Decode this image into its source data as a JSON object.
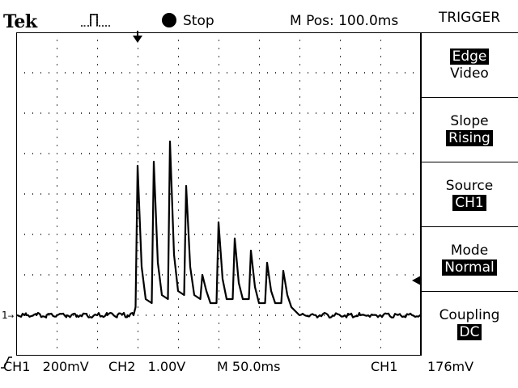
{
  "header": {
    "brand": "Tek",
    "acquisition_icon": "pulse-acquire-icon",
    "run_status_icon": "filled-circle-icon",
    "run_status": "Stop",
    "position_label": "M Pos:",
    "position_value": "100.0ms"
  },
  "menu": {
    "title": "TRIGGER",
    "buttons": [
      {
        "label": "Edge",
        "value": "Video",
        "label_selected": true,
        "value_selected": false
      },
      {
        "label": "Slope",
        "value": "Rising",
        "label_selected": false,
        "value_selected": true
      },
      {
        "label": "Source",
        "value": "CH1",
        "label_selected": false,
        "value_selected": true
      },
      {
        "label": "Mode",
        "value": "Normal",
        "label_selected": false,
        "value_selected": true
      },
      {
        "label": "Coupling",
        "value": "DC",
        "label_selected": false,
        "value_selected": true
      }
    ]
  },
  "markers": {
    "ground_ch1": "1",
    "ground_arrow": "→"
  },
  "footer": {
    "ch1": "CH1   200mV",
    "ch2": "CH2   1.00V",
    "timebase": "M 50.0ms",
    "trigger_source": "CH1",
    "trigger_slope_icon": "rising-edge-icon",
    "trigger_level": "176mV"
  },
  "colors": {
    "background": "#ffffff",
    "foreground": "#000000"
  },
  "chart_data": {
    "type": "line",
    "grid": true,
    "series": [
      {
        "x": [
          0,
          0.25,
          0.5,
          0.75,
          1.0,
          1.25,
          1.5,
          1.75,
          2.0,
          2.25,
          2.5,
          2.75,
          2.9,
          2.95,
          3.0,
          3.1,
          3.2,
          3.35,
          3.4,
          3.5,
          3.6,
          3.75,
          3.8,
          3.9,
          4.0,
          4.15,
          4.2,
          4.3,
          4.4,
          4.55,
          4.6,
          4.7,
          4.8,
          4.95,
          5.0,
          5.1,
          5.2,
          5.35,
          5.4,
          5.5,
          5.6,
          5.75,
          5.8,
          5.9,
          6.0,
          6.15,
          6.2,
          6.3,
          6.4,
          6.55,
          6.6,
          6.7,
          6.8,
          7.0,
          7.5,
          8.0,
          8.5,
          9.0,
          9.5,
          10.0
        ],
        "y": [
          0,
          0,
          0,
          0,
          0,
          0,
          0,
          0,
          0,
          0,
          0,
          0,
          0,
          0.2,
          3.7,
          1.2,
          0.4,
          0.3,
          3.8,
          1.3,
          0.5,
          0.4,
          4.3,
          1.5,
          0.6,
          0.5,
          3.2,
          1.2,
          0.5,
          0.4,
          1.0,
          0.6,
          0.3,
          0.3,
          2.3,
          0.9,
          0.4,
          0.4,
          1.9,
          0.8,
          0.4,
          0.4,
          1.6,
          0.7,
          0.3,
          0.3,
          1.3,
          0.6,
          0.3,
          0.3,
          1.1,
          0.5,
          0.2,
          0,
          0,
          0,
          0,
          0,
          0,
          0
        ]
      }
    ],
    "xlim": [
      0,
      10
    ],
    "ylim": [
      -1,
      7
    ],
    "ground_div": 0
  }
}
